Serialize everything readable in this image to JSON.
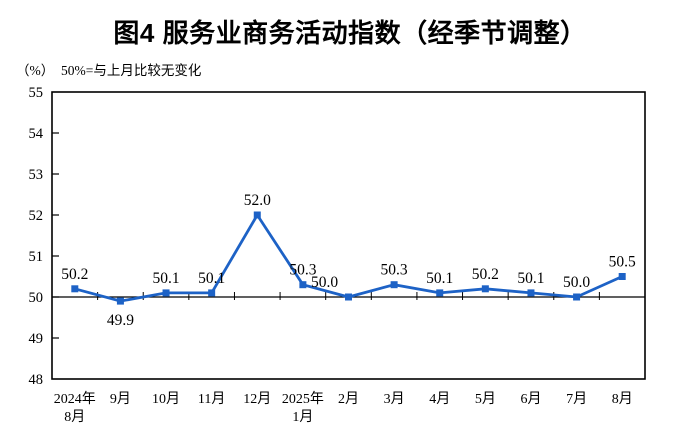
{
  "chart_data": {
    "type": "line",
    "title": "图4 服务业商务活动指数（经季节调整）",
    "subtitle": "（%）  50%=与上月比较无变化",
    "categories": [
      [
        "2024年",
        "8月"
      ],
      [
        "9月"
      ],
      [
        "10月"
      ],
      [
        "11月"
      ],
      [
        "12月"
      ],
      [
        "2025年",
        "1月"
      ],
      [
        "2月"
      ],
      [
        "3月"
      ],
      [
        "4月"
      ],
      [
        "5月"
      ],
      [
        "6月"
      ],
      [
        "7月"
      ],
      [
        "8月"
      ]
    ],
    "series": [
      {
        "name": "服务业商务活动指数",
        "values": [
          50.2,
          49.9,
          50.1,
          50.1,
          52.0,
          50.3,
          50.0,
          50.3,
          50.1,
          50.2,
          50.1,
          50.0,
          50.5
        ]
      }
    ],
    "data_labels_shown": true,
    "label_side": [
      "above",
      "below",
      "above",
      "above",
      "above",
      "above",
      "above",
      "above",
      "above",
      "above",
      "above",
      "above",
      "above"
    ],
    "label_dx": [
      0,
      0,
      0,
      0,
      0,
      0,
      -24,
      0,
      0,
      0,
      0,
      0,
      0
    ],
    "ylim": [
      48,
      55
    ],
    "y_tick_step": 1,
    "reference_line": 50,
    "grid": false,
    "legend_position": "none",
    "line_color": "#1d62c6",
    "axis_color": "#000000"
  }
}
